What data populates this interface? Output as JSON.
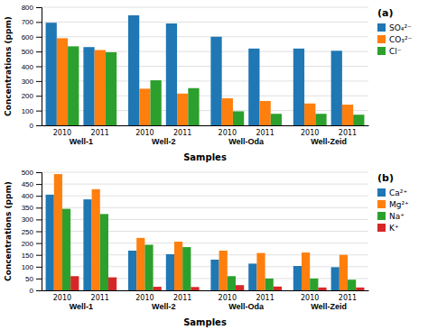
{
  "chart_data": [
    {
      "type": "bar",
      "title": "(a)",
      "xlabel": "Samples",
      "ylabel": "Concentrations (ppm)",
      "group_labels": [
        "Well-1",
        "Well-2",
        "Well-Oda",
        "Well-Zeid"
      ],
      "categories": [
        "2010",
        "2011",
        "2010",
        "2011",
        "2010",
        "2011",
        "2010",
        "2011"
      ],
      "series": [
        {
          "name": "SO₄²⁻",
          "values": [
            695,
            530,
            745,
            690,
            600,
            520,
            520,
            505
          ]
        },
        {
          "name": "CO₃²⁻",
          "values": [
            590,
            510,
            248,
            215,
            183,
            165,
            148,
            140
          ]
        },
        {
          "name": "Cl⁻",
          "values": [
            535,
            495,
            305,
            252,
            95,
            78,
            78,
            72
          ]
        }
      ],
      "ylim": [
        0,
        800
      ],
      "yticks": [
        0,
        100,
        200,
        300,
        400,
        500,
        600,
        700,
        800
      ],
      "grid": true,
      "legend": "upper right"
    },
    {
      "type": "bar",
      "title": "(b)",
      "xlabel": "Samples",
      "ylabel": "Concentrations (ppm)",
      "group_labels": [
        "Well-1",
        "Well-2",
        "Well-Oda",
        "Well-Zeid"
      ],
      "categories": [
        "2010",
        "2011",
        "2010",
        "2011",
        "2010",
        "2011",
        "2010",
        "2011"
      ],
      "series": [
        {
          "name": "Ca²⁺",
          "values": [
            405,
            385,
            168,
            153,
            130,
            113,
            103,
            98
          ]
        },
        {
          "name": "Mg²⁺",
          "values": [
            492,
            428,
            222,
            206,
            168,
            158,
            160,
            150
          ]
        },
        {
          "name": "Na⁺",
          "values": [
            345,
            323,
            193,
            183,
            60,
            50,
            50,
            45
          ]
        },
        {
          "name": "K⁺",
          "values": [
            60,
            55,
            15,
            14,
            22,
            16,
            12,
            12
          ]
        }
      ],
      "ylim": [
        0,
        500
      ],
      "yticks": [
        0,
        50,
        100,
        150,
        200,
        250,
        300,
        350,
        400,
        450,
        500
      ],
      "grid": true,
      "legend": "upper right"
    }
  ]
}
